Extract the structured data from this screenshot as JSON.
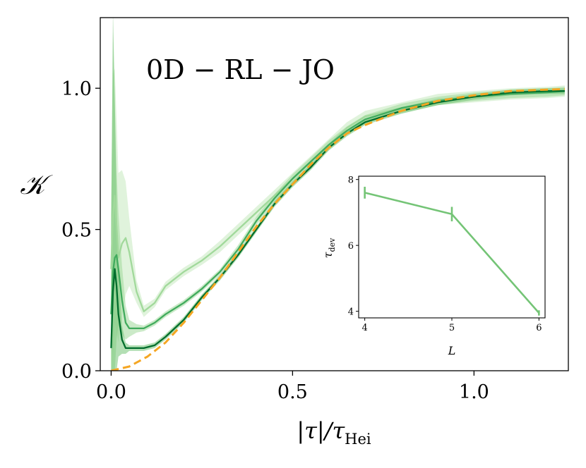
{
  "chart_data": [
    {
      "type": "line",
      "title": "",
      "annotation": "0D − RL − JO",
      "xlabel": "|τ|/τ_Hei",
      "xlabel_main": "|τ|/τ",
      "xlabel_sub": "Hei",
      "ylabel": "𝒦",
      "xlim": [
        -0.03,
        1.26
      ],
      "ylim": [
        0.0,
        1.25
      ],
      "xticks": [
        0.0,
        0.5,
        1.0
      ],
      "xtick_labels": [
        "0.0",
        "0.5",
        "1.0"
      ],
      "yticks": [
        0.0,
        0.5,
        1.0
      ],
      "ytick_labels": [
        "0.0",
        "0.5",
        "1.0"
      ],
      "grid": false,
      "legend": "none",
      "series": [
        {
          "color": "#a1d99b",
          "band_color": "#c7e9c0",
          "x": [
            0.0,
            0.005,
            0.01,
            0.02,
            0.03,
            0.04,
            0.05,
            0.07,
            0.09,
            0.12,
            0.15,
            0.2,
            0.25,
            0.3,
            0.35,
            0.4,
            0.45,
            0.5,
            0.55,
            0.6,
            0.65,
            0.7,
            0.8,
            0.9,
            1.0,
            1.1,
            1.2,
            1.25
          ],
          "y": [
            0.36,
            0.55,
            0.62,
            0.4,
            0.45,
            0.47,
            0.42,
            0.28,
            0.21,
            0.24,
            0.3,
            0.35,
            0.39,
            0.44,
            0.5,
            0.56,
            0.62,
            0.68,
            0.74,
            0.8,
            0.86,
            0.9,
            0.93,
            0.96,
            0.97,
            0.98,
            0.985,
            0.99
          ],
          "band": [
            0.2,
            0.5,
            0.45,
            0.3,
            0.26,
            0.2,
            0.12,
            0.04,
            0.02,
            0.015,
            0.015,
            0.015,
            0.015,
            0.02,
            0.02,
            0.02,
            0.02,
            0.02,
            0.02,
            0.02,
            0.02,
            0.02,
            0.02,
            0.02,
            0.02,
            0.02,
            0.02,
            0.02
          ]
        },
        {
          "color": "#41ab5d",
          "band_color": "#a1d99b",
          "x": [
            0.0,
            0.005,
            0.01,
            0.015,
            0.02,
            0.03,
            0.04,
            0.05,
            0.07,
            0.09,
            0.12,
            0.15,
            0.2,
            0.25,
            0.3,
            0.35,
            0.4,
            0.45,
            0.5,
            0.55,
            0.6,
            0.65,
            0.7,
            0.8,
            0.9,
            1.0,
            1.1,
            1.2,
            1.25
          ],
          "y": [
            0.2,
            0.35,
            0.4,
            0.41,
            0.36,
            0.25,
            0.17,
            0.15,
            0.15,
            0.15,
            0.17,
            0.2,
            0.24,
            0.29,
            0.35,
            0.43,
            0.53,
            0.61,
            0.68,
            0.74,
            0.8,
            0.85,
            0.89,
            0.93,
            0.955,
            0.97,
            0.98,
            0.985,
            0.99
          ],
          "band": [
            0.35,
            0.85,
            0.55,
            0.3,
            0.2,
            0.12,
            0.06,
            0.03,
            0.015,
            0.01,
            0.01,
            0.01,
            0.01,
            0.01,
            0.01,
            0.015,
            0.015,
            0.015,
            0.015,
            0.015,
            0.015,
            0.015,
            0.015,
            0.015,
            0.015,
            0.015,
            0.015,
            0.015,
            0.015
          ]
        },
        {
          "color": "#006d2c",
          "band_color": "#74c476",
          "x": [
            0.0,
            0.005,
            0.01,
            0.015,
            0.02,
            0.03,
            0.04,
            0.05,
            0.07,
            0.09,
            0.12,
            0.15,
            0.2,
            0.25,
            0.3,
            0.35,
            0.4,
            0.45,
            0.5,
            0.55,
            0.6,
            0.65,
            0.7,
            0.8,
            0.9,
            1.0,
            1.1,
            1.2,
            1.25
          ],
          "y": [
            0.08,
            0.28,
            0.36,
            0.3,
            0.2,
            0.11,
            0.08,
            0.08,
            0.08,
            0.08,
            0.09,
            0.12,
            0.18,
            0.26,
            0.33,
            0.41,
            0.5,
            0.59,
            0.66,
            0.72,
            0.79,
            0.84,
            0.88,
            0.92,
            0.95,
            0.97,
            0.985,
            0.99,
            0.99
          ],
          "band": [
            0.4,
            1.0,
            0.6,
            0.3,
            0.15,
            0.05,
            0.02,
            0.01,
            0.01,
            0.01,
            0.01,
            0.01,
            0.01,
            0.01,
            0.01,
            0.01,
            0.01,
            0.01,
            0.01,
            0.01,
            0.01,
            0.01,
            0.01,
            0.01,
            0.01,
            0.01,
            0.01,
            0.01,
            0.01
          ]
        },
        {
          "color": "#f5a623",
          "dashed": true,
          "x": [
            0.0,
            0.05,
            0.1,
            0.15,
            0.2,
            0.25,
            0.3,
            0.35,
            0.4,
            0.45,
            0.5,
            0.55,
            0.6,
            0.65,
            0.7,
            0.8,
            0.9,
            1.0,
            1.1,
            1.2,
            1.25
          ],
          "y": [
            0.0,
            0.015,
            0.05,
            0.1,
            0.17,
            0.25,
            0.33,
            0.42,
            0.51,
            0.59,
            0.66,
            0.73,
            0.79,
            0.84,
            0.87,
            0.92,
            0.955,
            0.975,
            0.99,
            0.995,
            0.997
          ]
        }
      ]
    },
    {
      "type": "line",
      "title": "",
      "xlabel": "L",
      "ylabel": "τ_dev",
      "ylabel_main": "τ",
      "ylabel_sub": "dev",
      "xlim": [
        3.93,
        6.07
      ],
      "ylim": [
        3.8,
        8.1
      ],
      "xticks": [
        4,
        5,
        6
      ],
      "xtick_labels": [
        "4",
        "5",
        "6"
      ],
      "yticks": [
        4,
        6,
        8
      ],
      "ytick_labels": [
        "4",
        "6",
        "8"
      ],
      "grid": false,
      "legend": "none",
      "series": [
        {
          "color": "#74c476",
          "x": [
            4,
            5,
            6
          ],
          "y": [
            7.6,
            6.95,
            3.95
          ],
          "err": [
            0.18,
            0.22,
            0.08
          ]
        }
      ]
    }
  ]
}
